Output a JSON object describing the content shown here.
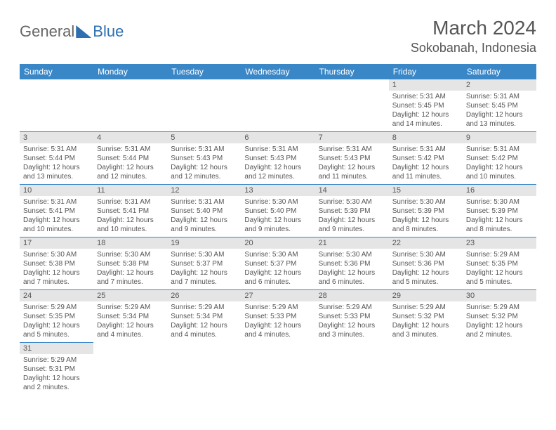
{
  "logo": {
    "general": "General",
    "blue": "Blue"
  },
  "title": "March 2024",
  "location": "Sokobanah, Indonesia",
  "colors": {
    "header_bg": "#3a87c8",
    "header_text": "#ffffff",
    "border": "#3a87c8",
    "daynum_bg": "#e5e5e5",
    "text": "#555555",
    "logo_blue": "#2d6fb0"
  },
  "day_headers": [
    "Sunday",
    "Monday",
    "Tuesday",
    "Wednesday",
    "Thursday",
    "Friday",
    "Saturday"
  ],
  "weeks": [
    [
      null,
      null,
      null,
      null,
      null,
      {
        "n": "1",
        "sunrise": "Sunrise: 5:31 AM",
        "sunset": "Sunset: 5:45 PM",
        "daylight": "Daylight: 12 hours and 14 minutes."
      },
      {
        "n": "2",
        "sunrise": "Sunrise: 5:31 AM",
        "sunset": "Sunset: 5:45 PM",
        "daylight": "Daylight: 12 hours and 13 minutes."
      }
    ],
    [
      {
        "n": "3",
        "sunrise": "Sunrise: 5:31 AM",
        "sunset": "Sunset: 5:44 PM",
        "daylight": "Daylight: 12 hours and 13 minutes."
      },
      {
        "n": "4",
        "sunrise": "Sunrise: 5:31 AM",
        "sunset": "Sunset: 5:44 PM",
        "daylight": "Daylight: 12 hours and 12 minutes."
      },
      {
        "n": "5",
        "sunrise": "Sunrise: 5:31 AM",
        "sunset": "Sunset: 5:43 PM",
        "daylight": "Daylight: 12 hours and 12 minutes."
      },
      {
        "n": "6",
        "sunrise": "Sunrise: 5:31 AM",
        "sunset": "Sunset: 5:43 PM",
        "daylight": "Daylight: 12 hours and 12 minutes."
      },
      {
        "n": "7",
        "sunrise": "Sunrise: 5:31 AM",
        "sunset": "Sunset: 5:43 PM",
        "daylight": "Daylight: 12 hours and 11 minutes."
      },
      {
        "n": "8",
        "sunrise": "Sunrise: 5:31 AM",
        "sunset": "Sunset: 5:42 PM",
        "daylight": "Daylight: 12 hours and 11 minutes."
      },
      {
        "n": "9",
        "sunrise": "Sunrise: 5:31 AM",
        "sunset": "Sunset: 5:42 PM",
        "daylight": "Daylight: 12 hours and 10 minutes."
      }
    ],
    [
      {
        "n": "10",
        "sunrise": "Sunrise: 5:31 AM",
        "sunset": "Sunset: 5:41 PM",
        "daylight": "Daylight: 12 hours and 10 minutes."
      },
      {
        "n": "11",
        "sunrise": "Sunrise: 5:31 AM",
        "sunset": "Sunset: 5:41 PM",
        "daylight": "Daylight: 12 hours and 10 minutes."
      },
      {
        "n": "12",
        "sunrise": "Sunrise: 5:31 AM",
        "sunset": "Sunset: 5:40 PM",
        "daylight": "Daylight: 12 hours and 9 minutes."
      },
      {
        "n": "13",
        "sunrise": "Sunrise: 5:30 AM",
        "sunset": "Sunset: 5:40 PM",
        "daylight": "Daylight: 12 hours and 9 minutes."
      },
      {
        "n": "14",
        "sunrise": "Sunrise: 5:30 AM",
        "sunset": "Sunset: 5:39 PM",
        "daylight": "Daylight: 12 hours and 9 minutes."
      },
      {
        "n": "15",
        "sunrise": "Sunrise: 5:30 AM",
        "sunset": "Sunset: 5:39 PM",
        "daylight": "Daylight: 12 hours and 8 minutes."
      },
      {
        "n": "16",
        "sunrise": "Sunrise: 5:30 AM",
        "sunset": "Sunset: 5:39 PM",
        "daylight": "Daylight: 12 hours and 8 minutes."
      }
    ],
    [
      {
        "n": "17",
        "sunrise": "Sunrise: 5:30 AM",
        "sunset": "Sunset: 5:38 PM",
        "daylight": "Daylight: 12 hours and 7 minutes."
      },
      {
        "n": "18",
        "sunrise": "Sunrise: 5:30 AM",
        "sunset": "Sunset: 5:38 PM",
        "daylight": "Daylight: 12 hours and 7 minutes."
      },
      {
        "n": "19",
        "sunrise": "Sunrise: 5:30 AM",
        "sunset": "Sunset: 5:37 PM",
        "daylight": "Daylight: 12 hours and 7 minutes."
      },
      {
        "n": "20",
        "sunrise": "Sunrise: 5:30 AM",
        "sunset": "Sunset: 5:37 PM",
        "daylight": "Daylight: 12 hours and 6 minutes."
      },
      {
        "n": "21",
        "sunrise": "Sunrise: 5:30 AM",
        "sunset": "Sunset: 5:36 PM",
        "daylight": "Daylight: 12 hours and 6 minutes."
      },
      {
        "n": "22",
        "sunrise": "Sunrise: 5:30 AM",
        "sunset": "Sunset: 5:36 PM",
        "daylight": "Daylight: 12 hours and 5 minutes."
      },
      {
        "n": "23",
        "sunrise": "Sunrise: 5:29 AM",
        "sunset": "Sunset: 5:35 PM",
        "daylight": "Daylight: 12 hours and 5 minutes."
      }
    ],
    [
      {
        "n": "24",
        "sunrise": "Sunrise: 5:29 AM",
        "sunset": "Sunset: 5:35 PM",
        "daylight": "Daylight: 12 hours and 5 minutes."
      },
      {
        "n": "25",
        "sunrise": "Sunrise: 5:29 AM",
        "sunset": "Sunset: 5:34 PM",
        "daylight": "Daylight: 12 hours and 4 minutes."
      },
      {
        "n": "26",
        "sunrise": "Sunrise: 5:29 AM",
        "sunset": "Sunset: 5:34 PM",
        "daylight": "Daylight: 12 hours and 4 minutes."
      },
      {
        "n": "27",
        "sunrise": "Sunrise: 5:29 AM",
        "sunset": "Sunset: 5:33 PM",
        "daylight": "Daylight: 12 hours and 4 minutes."
      },
      {
        "n": "28",
        "sunrise": "Sunrise: 5:29 AM",
        "sunset": "Sunset: 5:33 PM",
        "daylight": "Daylight: 12 hours and 3 minutes."
      },
      {
        "n": "29",
        "sunrise": "Sunrise: 5:29 AM",
        "sunset": "Sunset: 5:32 PM",
        "daylight": "Daylight: 12 hours and 3 minutes."
      },
      {
        "n": "30",
        "sunrise": "Sunrise: 5:29 AM",
        "sunset": "Sunset: 5:32 PM",
        "daylight": "Daylight: 12 hours and 2 minutes."
      }
    ],
    [
      {
        "n": "31",
        "sunrise": "Sunrise: 5:29 AM",
        "sunset": "Sunset: 5:31 PM",
        "daylight": "Daylight: 12 hours and 2 minutes."
      },
      null,
      null,
      null,
      null,
      null,
      null
    ]
  ]
}
